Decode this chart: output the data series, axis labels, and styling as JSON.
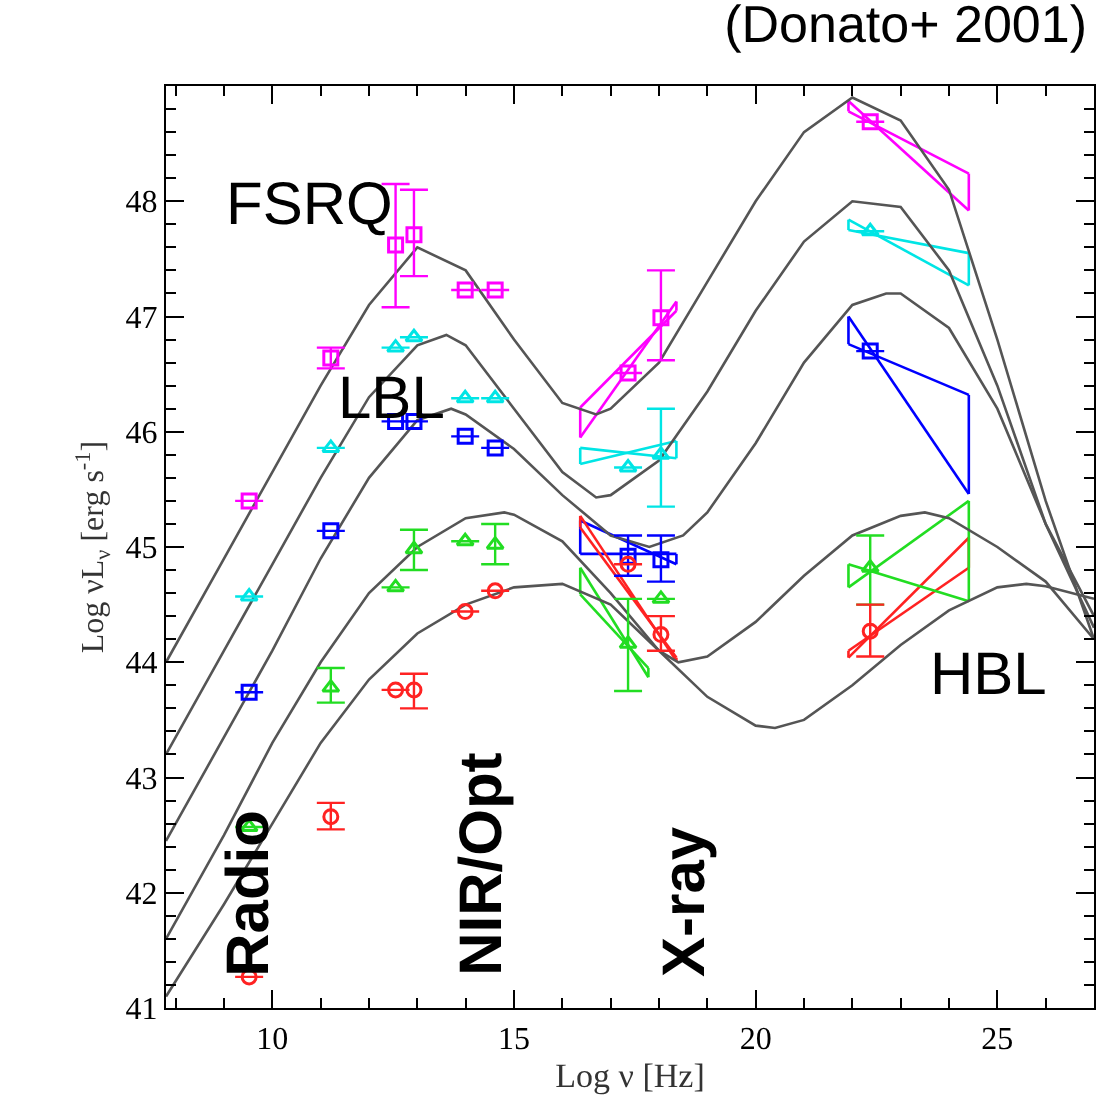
{
  "chart_data": {
    "type": "scatter",
    "title": "(Donato+ 2001)",
    "xlabel": "Log ν [Hz]",
    "ylabel": "Log νL$_{ν}$ [erg s$^{-1}$]",
    "xlim": [
      7.8,
      27
    ],
    "ylim": [
      41,
      49
    ],
    "xticks": [
      10,
      15,
      20,
      25
    ],
    "yticks": [
      41,
      42,
      43,
      44,
      45,
      46,
      47,
      48
    ],
    "annotations": [
      "FSRQ",
      "LBL",
      "HBL",
      "Radio",
      "NIR/Opt",
      "X-ray"
    ],
    "series": [
      {
        "color": "#ff00ff",
        "marker": "square",
        "x": [
          9.52,
          11.21,
          12.55,
          12.93,
          13.99,
          14.61,
          17.36,
          18.04,
          22.37
        ],
        "values": [
          45.4,
          46.64,
          47.62,
          47.71,
          47.23,
          47.23,
          46.51,
          46.99,
          48.69
        ],
        "errors": [
          null,
          [
            46.55,
            46.73
          ],
          [
            47.08,
            48.15
          ],
          [
            47.35,
            48.1
          ],
          null,
          null,
          null,
          [
            46.62,
            47.4
          ],
          null
        ]
      },
      {
        "color": "#00e5e5",
        "marker": "triangle",
        "x": [
          9.52,
          11.21,
          12.55,
          12.93,
          13.99,
          14.61,
          17.36,
          18.04,
          22.37
        ],
        "values": [
          44.57,
          45.86,
          46.73,
          46.82,
          46.29,
          46.29,
          45.69,
          45.8,
          47.74
        ],
        "errors": [
          null,
          null,
          null,
          null,
          null,
          null,
          null,
          [
            45.35,
            46.2
          ],
          null
        ]
      },
      {
        "color": "#0000ff",
        "marker": "square",
        "x": [
          9.52,
          11.21,
          12.55,
          12.93,
          13.99,
          14.61,
          17.36,
          18.04,
          22.37
        ],
        "values": [
          43.74,
          45.14,
          46.09,
          46.09,
          45.96,
          45.86,
          44.92,
          44.89,
          46.7
        ],
        "errors": [
          null,
          null,
          null,
          null,
          null,
          null,
          [
            44.75,
            45.1
          ],
          [
            44.7,
            45.1
          ],
          null
        ]
      },
      {
        "color": "#22dd22",
        "marker": "triangle",
        "x": [
          9.52,
          11.21,
          12.55,
          12.93,
          13.99,
          14.61,
          17.36,
          18.04,
          22.37
        ],
        "values": [
          42.57,
          43.78,
          44.65,
          44.98,
          45.05,
          45.02,
          44.16,
          44.55,
          44.82
        ],
        "errors": [
          null,
          [
            43.65,
            43.95
          ],
          null,
          [
            44.8,
            45.15
          ],
          null,
          [
            44.85,
            45.2
          ],
          [
            43.75,
            44.55
          ],
          null,
          [
            44.5,
            45.1
          ]
        ]
      },
      {
        "color": "#ff2222",
        "marker": "circle",
        "x": [
          9.52,
          11.21,
          12.55,
          12.93,
          13.99,
          14.61,
          17.36,
          18.04,
          22.37
        ],
        "values": [
          41.27,
          42.66,
          43.76,
          43.76,
          44.44,
          44.62,
          44.85,
          44.24,
          44.27
        ],
        "errors": [
          null,
          [
            42.55,
            42.78
          ],
          null,
          [
            43.6,
            43.9
          ],
          null,
          null,
          null,
          [
            44.1,
            44.4
          ],
          [
            44.05,
            44.5
          ]
        ]
      },
      {
        "type": "line",
        "color": "#ff00ff",
        "x": [
          16.37,
          18.36
        ],
        "values": [
          46.21,
          47.05
        ],
        "errors": [
          [
            45.95,
            46.21
          ],
          [
            47.05,
            47.13
          ]
        ]
      },
      {
        "type": "line",
        "color": "#ff00ff",
        "x": [
          16.37,
          18.36
        ],
        "values": [
          45.95,
          47.13
        ]
      },
      {
        "type": "line",
        "color": "#ff00ff",
        "x": [
          21.92,
          24.41
        ],
        "values": [
          48.87,
          47.92
        ],
        "errors": [
          [
            48.78,
            48.87
          ],
          [
            47.92,
            48.24
          ]
        ]
      },
      {
        "type": "line",
        "color": "#ff00ff",
        "x": [
          21.92,
          24.41
        ],
        "values": [
          48.78,
          48.24
        ]
      },
      {
        "type": "line",
        "color": "#00e5e5",
        "x": [
          16.37,
          18.36
        ],
        "values": [
          45.86,
          45.77
        ],
        "errors": [
          [
            45.72,
            45.86
          ],
          [
            45.77,
            45.92
          ]
        ]
      },
      {
        "type": "line",
        "color": "#00e5e5",
        "x": [
          16.37,
          18.36
        ],
        "values": [
          45.72,
          45.92
        ]
      },
      {
        "type": "line",
        "color": "#00e5e5",
        "x": [
          21.92,
          24.41
        ],
        "values": [
          47.84,
          47.27
        ],
        "errors": [
          [
            47.75,
            47.84
          ],
          [
            47.27,
            47.55
          ]
        ]
      },
      {
        "type": "line",
        "color": "#00e5e5",
        "x": [
          21.92,
          24.41
        ],
        "values": [
          47.75,
          47.55
        ]
      },
      {
        "type": "line",
        "color": "#0000ff",
        "x": [
          16.37,
          18.36
        ],
        "values": [
          45.23,
          44.85
        ],
        "errors": [
          [
            44.94,
            45.23
          ],
          [
            44.85,
            44.94
          ]
        ]
      },
      {
        "type": "line",
        "color": "#0000ff",
        "x": [
          16.37,
          18.36
        ],
        "values": [
          44.94,
          44.94
        ]
      },
      {
        "type": "line",
        "color": "#0000ff",
        "x": [
          21.92,
          24.41
        ],
        "values": [
          47.0,
          45.46
        ],
        "errors": [
          [
            46.76,
            47.0
          ],
          [
            45.46,
            46.32
          ]
        ]
      },
      {
        "type": "line",
        "color": "#0000ff",
        "x": [
          21.92,
          24.41
        ],
        "values": [
          46.76,
          46.32
        ]
      },
      {
        "type": "line",
        "color": "#ff2222",
        "x": [
          16.37,
          18.36
        ],
        "values": [
          45.27,
          44.01
        ],
        "errors": [
          [
            45.17,
            45.27
          ],
          [
            44.01,
            44.04
          ]
        ]
      },
      {
        "type": "line",
        "color": "#ff2222",
        "x": [
          16.37,
          18.36
        ],
        "values": [
          45.17,
          44.04
        ]
      },
      {
        "type": "line",
        "color": "#ff2222",
        "x": [
          21.92,
          24.41
        ],
        "values": [
          44.1,
          44.82
        ],
        "errors": [
          [
            44.04,
            44.1
          ],
          [
            44.82,
            45.08
          ]
        ]
      },
      {
        "type": "line",
        "color": "#ff2222",
        "x": [
          21.92,
          24.41
        ],
        "values": [
          44.04,
          45.08
        ]
      },
      {
        "type": "line",
        "color": "#22dd22",
        "x": [
          16.37,
          17.78
        ],
        "values": [
          44.82,
          43.87
        ],
        "errors": [
          [
            44.59,
            44.82
          ],
          [
            43.87,
            43.95
          ]
        ]
      },
      {
        "type": "line",
        "color": "#22dd22",
        "x": [
          16.37,
          17.78
        ],
        "values": [
          44.59,
          43.95
        ]
      },
      {
        "type": "line",
        "color": "#22dd22",
        "x": [
          21.92,
          24.41
        ],
        "values": [
          44.85,
          44.53
        ],
        "errors": [
          [
            44.65,
            44.85
          ],
          [
            44.53,
            45.4
          ]
        ]
      },
      {
        "type": "line",
        "color": "#22dd22",
        "x": [
          21.92,
          24.41
        ],
        "values": [
          44.65,
          45.4
        ]
      },
      {
        "type": "line",
        "color": "#555555",
        "x": [
          7.8,
          9,
          10,
          11,
          12,
          13,
          14,
          15,
          16,
          16.7,
          17,
          18,
          19,
          20,
          21,
          22,
          23,
          24,
          25,
          26,
          27
        ],
        "values": [
          44.0,
          44.9,
          45.65,
          46.4,
          47.1,
          47.6,
          47.4,
          46.8,
          46.25,
          46.15,
          46.2,
          46.6,
          47.3,
          48.0,
          48.6,
          48.9,
          48.7,
          48.1,
          46.8,
          45.4,
          44.2
        ]
      },
      {
        "type": "line",
        "color": "#555555",
        "x": [
          7.8,
          9,
          10,
          11,
          12,
          13,
          13.6,
          14,
          15,
          16,
          16.7,
          17,
          18,
          19,
          20,
          21,
          22,
          23,
          24,
          25,
          26,
          27
        ],
        "values": [
          43.2,
          44.1,
          44.85,
          45.6,
          46.3,
          46.75,
          46.84,
          46.75,
          46.2,
          45.65,
          45.43,
          45.45,
          45.75,
          46.35,
          47.05,
          47.65,
          48.0,
          47.95,
          47.4,
          46.4,
          45.2,
          44.3
        ]
      },
      {
        "type": "line",
        "color": "#555555",
        "x": [
          7.8,
          9,
          10,
          11,
          12,
          13,
          13.7,
          14,
          15,
          16,
          17,
          17.8,
          18.5,
          19,
          20,
          21,
          22,
          22.7,
          23,
          24,
          25,
          26,
          27
        ],
        "values": [
          42.45,
          43.35,
          44.1,
          44.9,
          45.6,
          46.1,
          46.2,
          46.15,
          45.85,
          45.45,
          45.1,
          45.0,
          45.1,
          45.3,
          45.9,
          46.6,
          47.1,
          47.2,
          47.2,
          46.9,
          46.2,
          45.2,
          44.4
        ]
      },
      {
        "type": "line",
        "color": "#555555",
        "x": [
          7.8,
          9,
          10,
          11,
          12,
          13,
          14,
          14.8,
          15,
          16,
          17,
          18,
          18.4,
          19,
          20,
          21,
          22,
          23,
          23.5,
          24,
          25,
          26,
          27
        ],
        "values": [
          41.6,
          42.5,
          43.3,
          44.0,
          44.6,
          45.0,
          45.25,
          45.3,
          45.28,
          45.05,
          44.6,
          44.1,
          44.0,
          44.05,
          44.35,
          44.75,
          45.1,
          45.27,
          45.3,
          45.25,
          45.0,
          44.7,
          44.2
        ]
      },
      {
        "type": "line",
        "color": "#555555",
        "x": [
          7.8,
          9,
          10,
          11,
          12,
          13,
          14,
          15,
          16,
          17,
          18,
          19,
          20,
          20.4,
          21,
          22,
          23,
          24,
          25,
          25.6,
          26,
          27
        ],
        "values": [
          41.1,
          41.9,
          42.6,
          43.3,
          43.85,
          44.25,
          44.5,
          44.65,
          44.68,
          44.5,
          44.1,
          43.7,
          43.45,
          43.43,
          43.5,
          43.8,
          44.15,
          44.45,
          44.65,
          44.68,
          44.66,
          44.55
        ]
      }
    ]
  }
}
